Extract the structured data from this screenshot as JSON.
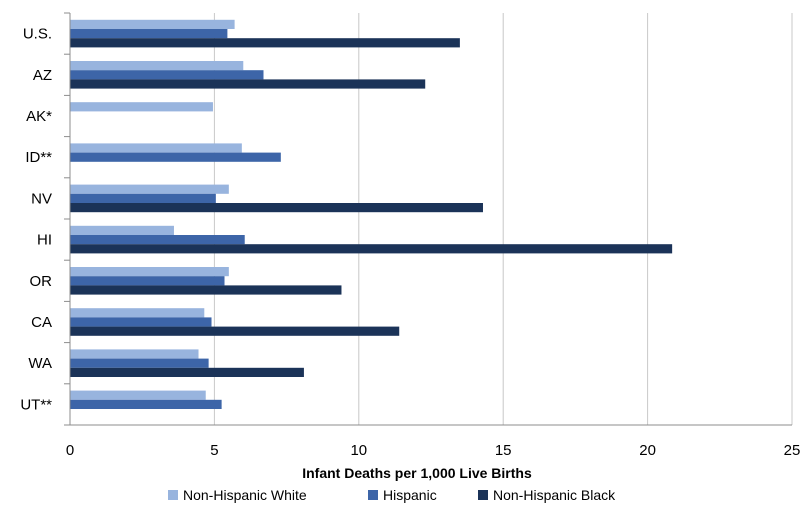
{
  "chart_data": {
    "type": "bar",
    "orientation": "horizontal",
    "categories": [
      "U.S.",
      "AZ",
      "AK*",
      "ID**",
      "NV",
      "HI",
      "OR",
      "CA",
      "WA",
      "UT**"
    ],
    "series": [
      {
        "name": "Non-Hispanic White",
        "color": "#98b4de",
        "values": [
          5.7,
          6.0,
          4.95,
          5.95,
          5.5,
          3.6,
          5.5,
          4.65,
          4.45,
          4.7
        ]
      },
      {
        "name": "Hispanic",
        "color": "#3d65a8",
        "values": [
          5.45,
          6.7,
          null,
          7.3,
          5.05,
          6.05,
          5.35,
          4.9,
          4.8,
          5.25
        ]
      },
      {
        "name": "Non-Hispanic Black",
        "color": "#1b3358",
        "values": [
          13.5,
          12.3,
          null,
          null,
          14.3,
          20.85,
          9.4,
          11.4,
          8.1,
          null
        ]
      }
    ],
    "xlim": [
      0,
      25
    ],
    "xticks": [
      "0",
      "5",
      "10",
      "15",
      "20",
      "25"
    ],
    "xlabel": "Infant Deaths per 1,000 Live Births",
    "ylabel": "",
    "grid": "vertical",
    "legend_position": "bottom"
  }
}
